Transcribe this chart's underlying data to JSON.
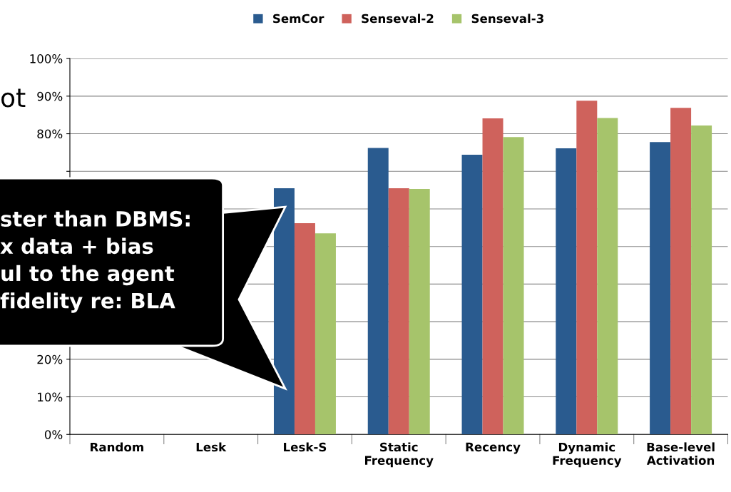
{
  "chart_data": {
    "type": "bar",
    "categories": [
      "Random",
      "Lesk",
      "Lesk-S",
      "Static\nFrequency",
      "Recency",
      "Dynamic\nFrequency",
      "Base-level\nActivation"
    ],
    "series": [
      {
        "name": "SemCor",
        "color": "#2a5b8f",
        "values": [
          null,
          null,
          65.5,
          76.2,
          74.4,
          76.1,
          77.8
        ]
      },
      {
        "name": "Senseval-2",
        "color": "#cf625c",
        "values": [
          null,
          null,
          56.2,
          65.5,
          84.1,
          88.8,
          86.9
        ]
      },
      {
        "name": "Senseval-3",
        "color": "#a6c46b",
        "values": [
          null,
          null,
          53.5,
          65.3,
          79.1,
          84.2,
          82.2
        ]
      }
    ],
    "ylim": [
      0,
      100
    ],
    "yticks": [
      {
        "value": 0,
        "label": "0%"
      },
      {
        "value": 10,
        "label": "10%"
      },
      {
        "value": 20,
        "label": "20%"
      },
      {
        "value": 30,
        "label": null
      },
      {
        "value": 40,
        "label": null
      },
      {
        "value": 50,
        "label": null
      },
      {
        "value": 60,
        "label": null
      },
      {
        "value": 70,
        "label": null
      },
      {
        "value": 80,
        "label": "80%"
      },
      {
        "value": 90,
        "label": "90%"
      },
      {
        "value": 100,
        "label": "100%"
      }
    ],
    "grid": "y",
    "legend": "top",
    "annotations": [
      "ot",
      "ster than DBMS:\nx data + bias\nul to the agent\nfidelity re: BLA"
    ]
  }
}
